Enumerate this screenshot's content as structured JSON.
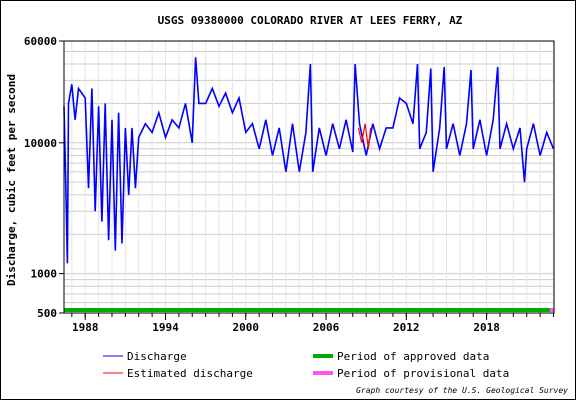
{
  "chart_data": {
    "type": "line",
    "title": "USGS 09380000 COLORADO RIVER AT LEES FERRY, AZ",
    "ylabel": "Discharge, cubic feet per second",
    "xlabel": "",
    "y_scale": "log",
    "ylim": [
      500,
      60000
    ],
    "xlim": [
      "1986-06-01",
      "2023-01-15"
    ],
    "y_ticks": [
      {
        "value": 60000,
        "label": "60000"
      },
      {
        "value": 10000,
        "label": "10000"
      },
      {
        "value": 1000,
        "label": "1000"
      },
      {
        "value": 500,
        "label": "500"
      }
    ],
    "x_ticks": [
      {
        "value": "1988-01-01",
        "label": "1988"
      },
      {
        "value": "1994-01-01",
        "label": "1994"
      },
      {
        "value": "2000-01-01",
        "label": "2000"
      },
      {
        "value": "2006-01-01",
        "label": "2006"
      },
      {
        "value": "2012-01-01",
        "label": "2012"
      },
      {
        "value": "2018-01-01",
        "label": "2018"
      }
    ],
    "grid": true,
    "legend_position": "bottom",
    "series": [
      {
        "name": "Discharge",
        "color": "#0000ff",
        "points": [
          [
            "1986-06-01",
            19000
          ],
          [
            "1986-07-15",
            5500
          ],
          [
            "1986-09-01",
            1200
          ],
          [
            "1986-10-01",
            20000
          ],
          [
            "1987-01-01",
            28000
          ],
          [
            "1987-04-01",
            15000
          ],
          [
            "1987-07-01",
            26000
          ],
          [
            "1987-10-01",
            24000
          ],
          [
            "1988-01-01",
            22000
          ],
          [
            "1988-04-01",
            4500
          ],
          [
            "1988-07-01",
            26000
          ],
          [
            "1988-10-01",
            3000
          ],
          [
            "1989-01-01",
            19000
          ],
          [
            "1989-04-01",
            2500
          ],
          [
            "1989-07-01",
            20000
          ],
          [
            "1989-10-01",
            1800
          ],
          [
            "1990-01-01",
            15000
          ],
          [
            "1990-04-01",
            1500
          ],
          [
            "1990-07-01",
            17000
          ],
          [
            "1990-10-01",
            1700
          ],
          [
            "1991-01-01",
            13000
          ],
          [
            "1991-04-01",
            4000
          ],
          [
            "1991-07-01",
            13000
          ],
          [
            "1991-10-01",
            4500
          ],
          [
            "1992-01-01",
            11000
          ],
          [
            "1992-07-01",
            14000
          ],
          [
            "1993-01-01",
            12000
          ],
          [
            "1993-07-01",
            17000
          ],
          [
            "1994-01-01",
            11000
          ],
          [
            "1994-07-01",
            15000
          ],
          [
            "1995-01-01",
            13000
          ],
          [
            "1995-07-01",
            20000
          ],
          [
            "1996-01-01",
            10000
          ],
          [
            "1996-04-01",
            45000
          ],
          [
            "1996-07-01",
            20000
          ],
          [
            "1997-01-01",
            20000
          ],
          [
            "1997-07-01",
            26000
          ],
          [
            "1998-01-01",
            19000
          ],
          [
            "1998-07-01",
            24000
          ],
          [
            "1999-01-01",
            17000
          ],
          [
            "1999-07-01",
            22000
          ],
          [
            "2000-01-01",
            12000
          ],
          [
            "2000-07-01",
            14000
          ],
          [
            "2001-01-01",
            9000
          ],
          [
            "2001-07-01",
            15000
          ],
          [
            "2002-01-01",
            8000
          ],
          [
            "2002-07-01",
            13000
          ],
          [
            "2003-01-01",
            6000
          ],
          [
            "2003-07-01",
            14000
          ],
          [
            "2004-01-01",
            6000
          ],
          [
            "2004-07-01",
            12000
          ],
          [
            "2004-11-01",
            40000
          ],
          [
            "2005-01-01",
            6000
          ],
          [
            "2005-07-01",
            13000
          ],
          [
            "2006-01-01",
            8000
          ],
          [
            "2006-07-01",
            14000
          ],
          [
            "2007-01-01",
            9000
          ],
          [
            "2007-07-01",
            15000
          ],
          [
            "2008-01-01",
            8500
          ],
          [
            "2008-03-05",
            40000
          ],
          [
            "2008-07-01",
            14000
          ],
          [
            "2009-01-01",
            8000
          ],
          [
            "2009-07-01",
            14000
          ],
          [
            "2010-01-01",
            9000
          ],
          [
            "2010-07-01",
            13000
          ],
          [
            "2011-01-01",
            13000
          ],
          [
            "2011-07-01",
            22000
          ],
          [
            "2012-01-01",
            20000
          ],
          [
            "2012-07-01",
            14000
          ],
          [
            "2012-11-01",
            40000
          ],
          [
            "2013-01-01",
            9000
          ],
          [
            "2013-07-01",
            12000
          ],
          [
            "2013-11-01",
            37000
          ],
          [
            "2014-01-01",
            6000
          ],
          [
            "2014-07-01",
            13000
          ],
          [
            "2014-11-01",
            38000
          ],
          [
            "2015-01-01",
            9000
          ],
          [
            "2015-07-01",
            14000
          ],
          [
            "2016-01-01",
            8000
          ],
          [
            "2016-07-01",
            14000
          ],
          [
            "2016-11-01",
            36000
          ],
          [
            "2017-01-01",
            9000
          ],
          [
            "2017-07-01",
            15000
          ],
          [
            "2018-01-01",
            8000
          ],
          [
            "2018-07-01",
            15000
          ],
          [
            "2018-11-01",
            38000
          ],
          [
            "2019-01-01",
            9000
          ],
          [
            "2019-07-01",
            14000
          ],
          [
            "2020-01-01",
            9000
          ],
          [
            "2020-07-01",
            13000
          ],
          [
            "2020-11-01",
            5000
          ],
          [
            "2021-01-01",
            9000
          ],
          [
            "2021-07-01",
            14000
          ],
          [
            "2022-01-01",
            8000
          ],
          [
            "2022-07-01",
            12000
          ],
          [
            "2023-01-01",
            9000
          ]
        ]
      },
      {
        "name": "Estimated discharge",
        "color": "#ff0000",
        "points": [
          [
            "2008-06-01",
            13000
          ],
          [
            "2008-09-01",
            10000
          ],
          [
            "2008-12-01",
            14000
          ],
          [
            "2009-03-01",
            9000
          ],
          [
            "2009-05-01",
            13000
          ]
        ]
      }
    ],
    "legend": [
      {
        "label": "Discharge",
        "color": "#0000ff"
      },
      {
        "label": "Estimated discharge",
        "color": "#ff0000"
      },
      {
        "label": "Period of approved data",
        "color": "#00aa00"
      },
      {
        "label": "Period of provisional data",
        "color": "#ff55ee"
      }
    ],
    "periods": [
      {
        "name": "Period of approved data",
        "color": "#00aa00",
        "start": "1986-06-01",
        "end": "2022-10-01"
      },
      {
        "name": "Period of provisional data",
        "color": "#ff55ee",
        "start": "2022-10-01",
        "end": "2023-01-15"
      }
    ],
    "credit": "Graph courtesy of the U.S. Geological Survey"
  }
}
